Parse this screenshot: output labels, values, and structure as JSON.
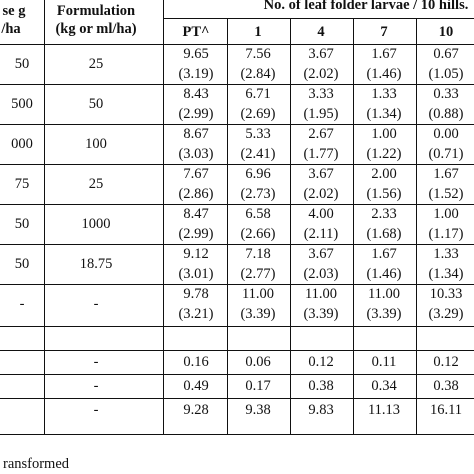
{
  "header": {
    "dose_line1": "se g",
    "dose_line2": "/ha",
    "formulation_line1": "Formulation",
    "formulation_line2": "(kg or ml/ha)",
    "group_title": "No. of leaf folder larvae / 10 hills.",
    "subcols": [
      "PT^",
      "1",
      "4",
      "7",
      "10"
    ]
  },
  "rows": [
    {
      "dose": "50",
      "formulation": "25",
      "values": [
        "9.65",
        "7.56",
        "3.67",
        "1.67",
        "0.67"
      ],
      "transformed": [
        "(3.19)",
        "(2.84)",
        "(2.02)",
        "(1.46)",
        "(1.05)"
      ]
    },
    {
      "dose": "500",
      "formulation": "50",
      "values": [
        "8.43",
        "6.71",
        "3.33",
        "1.33",
        "0.33"
      ],
      "transformed": [
        "(2.99)",
        "(2.69)",
        "(1.95)",
        "(1.34)",
        "(0.88)"
      ]
    },
    {
      "dose": "000",
      "formulation": "100",
      "values": [
        "8.67",
        "5.33",
        "2.67",
        "1.00",
        "0.00"
      ],
      "transformed": [
        "(3.03)",
        "(2.41)",
        "(1.77)",
        "(1.22)",
        "(0.71)"
      ]
    },
    {
      "dose": "75",
      "formulation": "25",
      "values": [
        "7.67",
        "6.96",
        "3.67",
        "2.00",
        "1.67"
      ],
      "transformed": [
        "(2.86)",
        "(2.73)",
        "(2.02)",
        "(1.56)",
        "(1.52)"
      ]
    },
    {
      "dose": "50",
      "formulation": "1000",
      "values": [
        "8.47",
        "6.58",
        "4.00",
        "2.33",
        "1.00"
      ],
      "transformed": [
        "(2.99)",
        "(2.66)",
        "(2.11)",
        "(1.68)",
        "(1.17)"
      ]
    },
    {
      "dose": "50",
      "formulation": "18.75",
      "values": [
        "9.12",
        "7.18",
        "3.67",
        "1.67",
        "1.33"
      ],
      "transformed": [
        "(3.01)",
        "(2.77)",
        "(2.03)",
        "(1.46)",
        "(1.34)"
      ]
    },
    {
      "dose": "-",
      "formulation": "-",
      "values": [
        "9.78",
        "11.00",
        "11.00",
        "11.00",
        "10.33"
      ],
      "transformed": [
        "(3.21)",
        "(3.39)",
        "(3.39)",
        "(3.39)",
        "(3.29)"
      ]
    },
    {
      "dose": "",
      "formulation": "-",
      "values": [
        "0.16",
        "0.06",
        "0.12",
        "0.11",
        "0.12"
      ],
      "transformed": [
        "",
        "",
        "",
        "",
        ""
      ]
    },
    {
      "dose": "",
      "formulation": "-",
      "values": [
        "0.49",
        "0.17",
        "0.38",
        "0.34",
        "0.38"
      ],
      "transformed": [
        "",
        "",
        "",
        "",
        ""
      ]
    },
    {
      "dose": "",
      "formulation": "-",
      "values": [
        "9.28",
        "9.38",
        "9.83",
        "11.13",
        "16.11"
      ],
      "transformed": [
        "",
        "",
        "",
        "",
        ""
      ]
    }
  ],
  "footnote": "ransformed"
}
